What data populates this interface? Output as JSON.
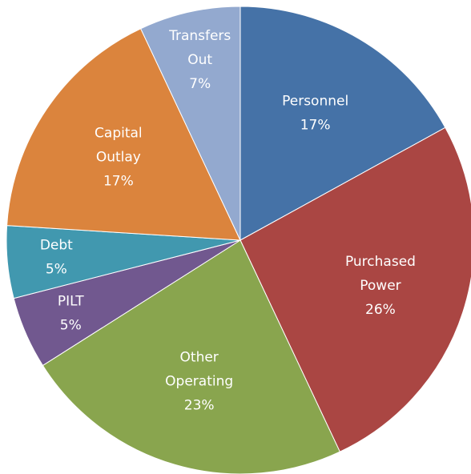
{
  "chart_data": {
    "type": "pie",
    "categories": [
      "Personnel",
      "Purchased Power",
      "Other Operating",
      "PILT",
      "Debt",
      "Capital Outlay",
      "Transfers Out"
    ],
    "values": [
      17,
      26,
      23,
      5,
      5,
      17,
      7
    ],
    "value_labels": [
      "17%",
      "26%",
      "23%",
      "5%",
      "5%",
      "17%",
      "7%"
    ],
    "colors": [
      "#4572a7",
      "#aa4643",
      "#89a54e",
      "#71588f",
      "#4198af",
      "#db843d",
      "#93a9cf"
    ]
  }
}
